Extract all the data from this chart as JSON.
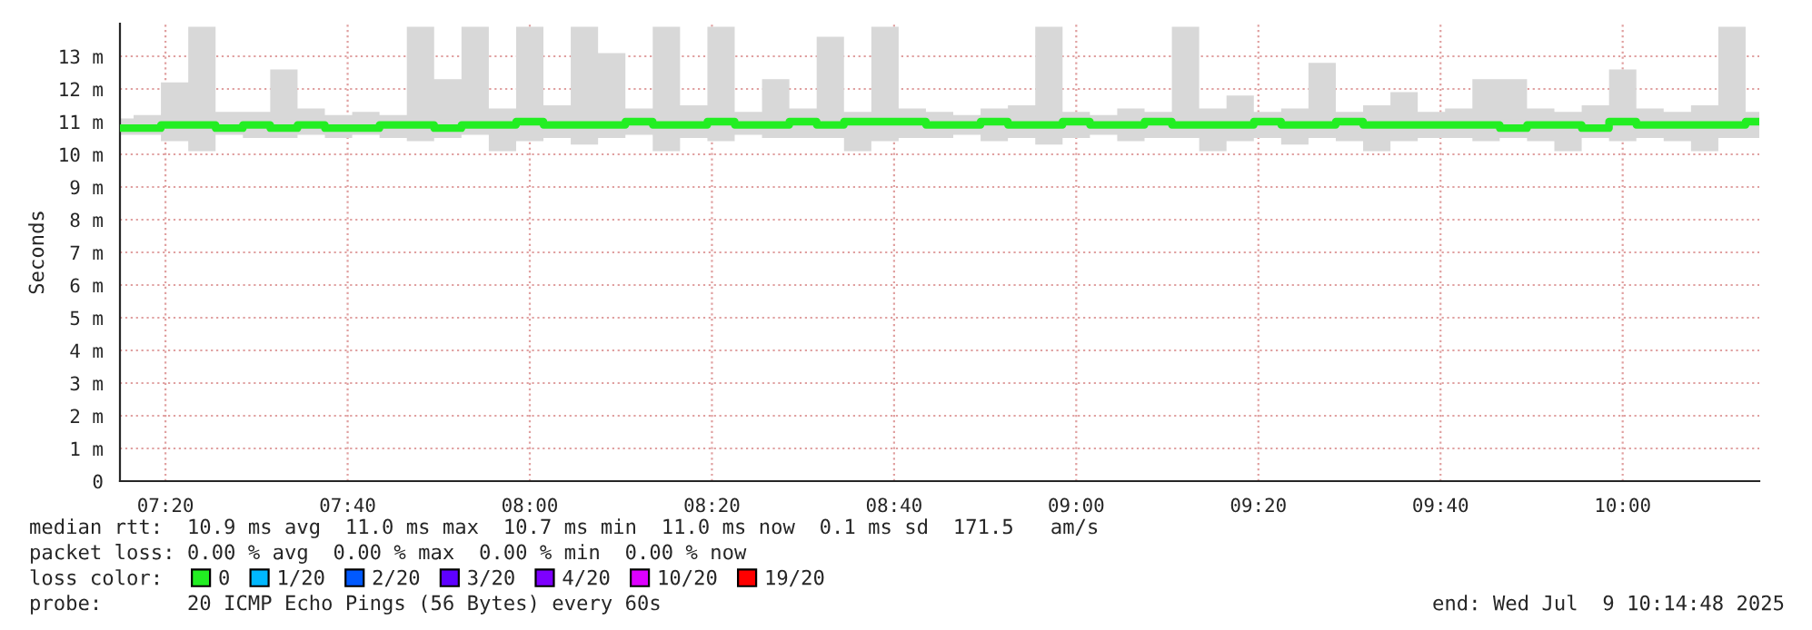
{
  "chart_data": {
    "type": "step",
    "ylabel": "Seconds",
    "x": [
      "2025-07-09T07:15",
      "2025-07-09T07:18",
      "2025-07-09T07:21",
      "2025-07-09T07:24",
      "2025-07-09T07:27",
      "2025-07-09T07:30",
      "2025-07-09T07:33",
      "2025-07-09T07:36",
      "2025-07-09T07:39",
      "2025-07-09T07:42",
      "2025-07-09T07:45",
      "2025-07-09T07:48",
      "2025-07-09T07:51",
      "2025-07-09T07:54",
      "2025-07-09T07:57",
      "2025-07-09T08:00",
      "2025-07-09T08:03",
      "2025-07-09T08:06",
      "2025-07-09T08:09",
      "2025-07-09T08:12",
      "2025-07-09T08:15",
      "2025-07-09T08:18",
      "2025-07-09T08:21",
      "2025-07-09T08:24",
      "2025-07-09T08:27",
      "2025-07-09T08:30",
      "2025-07-09T08:33",
      "2025-07-09T08:36",
      "2025-07-09T08:39",
      "2025-07-09T08:42",
      "2025-07-09T08:45",
      "2025-07-09T08:48",
      "2025-07-09T08:51",
      "2025-07-09T08:54",
      "2025-07-09T08:57",
      "2025-07-09T09:00",
      "2025-07-09T09:03",
      "2025-07-09T09:06",
      "2025-07-09T09:09",
      "2025-07-09T09:12",
      "2025-07-09T09:15",
      "2025-07-09T09:18",
      "2025-07-09T09:21",
      "2025-07-09T09:24",
      "2025-07-09T09:27",
      "2025-07-09T09:30",
      "2025-07-09T09:33",
      "2025-07-09T09:36",
      "2025-07-09T09:39",
      "2025-07-09T09:42",
      "2025-07-09T09:45",
      "2025-07-09T09:48",
      "2025-07-09T09:51",
      "2025-07-09T09:54",
      "2025-07-09T09:57",
      "2025-07-09T10:00",
      "2025-07-09T10:03",
      "2025-07-09T10:06",
      "2025-07-09T10:09",
      "2025-07-09T10:12",
      "2025-07-09T10:15"
    ],
    "series": [
      {
        "name": "0",
        "color": "#22ee22",
        "values": [
          10.8,
          10.8,
          10.9,
          10.9,
          10.8,
          10.9,
          10.8,
          10.9,
          10.8,
          10.8,
          10.9,
          10.9,
          10.8,
          10.9,
          10.9,
          11.0,
          10.9,
          10.9,
          10.9,
          11.0,
          10.9,
          10.9,
          11.0,
          10.9,
          10.9,
          11.0,
          10.9,
          11.0,
          11.0,
          11.0,
          10.9,
          10.9,
          11.0,
          10.9,
          10.9,
          11.0,
          10.9,
          10.9,
          11.0,
          10.9,
          10.9,
          10.9,
          11.0,
          10.9,
          10.9,
          11.0,
          10.9,
          10.9,
          10.9,
          10.9,
          10.9,
          10.8,
          10.9,
          10.9,
          10.8,
          11.0,
          10.9,
          10.9,
          10.9,
          10.9,
          11.0
        ],
        "lower": [
          10.6,
          10.6,
          10.4,
          10.1,
          10.6,
          10.5,
          10.5,
          10.6,
          10.5,
          10.6,
          10.5,
          10.4,
          10.5,
          10.6,
          10.1,
          10.4,
          10.5,
          10.3,
          10.5,
          10.6,
          10.1,
          10.5,
          10.4,
          10.6,
          10.5,
          10.5,
          10.5,
          10.1,
          10.4,
          10.5,
          10.5,
          10.6,
          10.4,
          10.5,
          10.3,
          10.5,
          10.6,
          10.4,
          10.5,
          10.5,
          10.1,
          10.4,
          10.5,
          10.3,
          10.5,
          10.4,
          10.1,
          10.4,
          10.5,
          10.5,
          10.4,
          10.5,
          10.4,
          10.1,
          10.5,
          10.4,
          10.5,
          10.4,
          10.1,
          10.5,
          10.5
        ],
        "upper": [
          11.1,
          11.2,
          12.2,
          13.9,
          11.3,
          11.3,
          12.6,
          11.4,
          11.2,
          11.3,
          11.2,
          13.9,
          12.3,
          13.9,
          11.4,
          13.9,
          11.5,
          13.9,
          13.1,
          11.4,
          13.9,
          11.5,
          13.9,
          11.3,
          12.3,
          11.4,
          13.6,
          11.3,
          13.9,
          11.4,
          11.3,
          11.2,
          11.4,
          11.5,
          13.9,
          11.3,
          11.2,
          11.4,
          11.3,
          13.9,
          11.4,
          11.8,
          11.3,
          11.4,
          12.8,
          11.3,
          11.5,
          11.9,
          11.3,
          11.4,
          12.3,
          12.3,
          11.4,
          11.3,
          11.5,
          12.6,
          11.4,
          11.3,
          11.5,
          13.9,
          11.3
        ]
      },
      {
        "name": "1/20",
        "color": "#00b8ff",
        "values": [
          null,
          null,
          null,
          null,
          null,
          null,
          null,
          null,
          null,
          null,
          null,
          null,
          null,
          null,
          null,
          null,
          null,
          null,
          null,
          null,
          null,
          null,
          null,
          null,
          null,
          null,
          null,
          null,
          null,
          null,
          null,
          null,
          null,
          null,
          null,
          null,
          null,
          null,
          null,
          null,
          null,
          null,
          null,
          null,
          null,
          null,
          null,
          null,
          null,
          null,
          null,
          null,
          null,
          null,
          null,
          null,
          null,
          null,
          null,
          null,
          null
        ]
      },
      {
        "name": "2/20",
        "color": "#0059ff",
        "values": [
          null,
          null,
          null,
          null,
          null,
          null,
          null,
          null,
          null,
          null,
          null,
          null,
          null,
          null,
          null,
          null,
          null,
          null,
          null,
          null,
          null,
          null,
          null,
          null,
          null,
          null,
          null,
          null,
          null,
          null,
          null,
          null,
          null,
          null,
          null,
          null,
          null,
          null,
          null,
          null,
          null,
          null,
          null,
          null,
          null,
          null,
          null,
          null,
          null,
          null,
          null,
          null,
          null,
          null,
          null,
          null,
          null,
          null,
          null,
          null,
          null
        ]
      },
      {
        "name": "3/20",
        "color": "#5e00ff",
        "values": [
          null,
          null,
          null,
          null,
          null,
          null,
          null,
          null,
          null,
          null,
          null,
          null,
          null,
          null,
          null,
          null,
          null,
          null,
          null,
          null,
          null,
          null,
          null,
          null,
          null,
          null,
          null,
          null,
          null,
          null,
          null,
          null,
          null,
          null,
          null,
          null,
          null,
          null,
          null,
          null,
          null,
          null,
          null,
          null,
          null,
          null,
          null,
          null,
          null,
          null,
          null,
          null,
          null,
          null,
          null,
          null,
          null,
          null,
          null,
          null,
          null
        ]
      },
      {
        "name": "4/20",
        "color": "#7e00ff",
        "values": [
          null,
          null,
          null,
          null,
          null,
          null,
          null,
          null,
          null,
          null,
          null,
          null,
          null,
          null,
          null,
          null,
          null,
          null,
          null,
          null,
          null,
          null,
          null,
          null,
          null,
          null,
          null,
          null,
          null,
          null,
          null,
          null,
          null,
          null,
          null,
          null,
          null,
          null,
          null,
          null,
          null,
          null,
          null,
          null,
          null,
          null,
          null,
          null,
          null,
          null,
          null,
          null,
          null,
          null,
          null,
          null,
          null,
          null,
          null,
          null,
          null
        ]
      },
      {
        "name": "10/20",
        "color": "#dd00ff",
        "values": [
          null,
          null,
          null,
          null,
          null,
          null,
          null,
          null,
          null,
          null,
          null,
          null,
          null,
          null,
          null,
          null,
          null,
          null,
          null,
          null,
          null,
          null,
          null,
          null,
          null,
          null,
          null,
          null,
          null,
          null,
          null,
          null,
          null,
          null,
          null,
          null,
          null,
          null,
          null,
          null,
          null,
          null,
          null,
          null,
          null,
          null,
          null,
          null,
          null,
          null,
          null,
          null,
          null,
          null,
          null,
          null,
          null,
          null,
          null,
          null,
          null
        ]
      },
      {
        "name": "19/20",
        "color": "#ff0000",
        "values": [
          null,
          null,
          null,
          null,
          null,
          null,
          null,
          null,
          null,
          null,
          null,
          null,
          null,
          null,
          null,
          null,
          null,
          null,
          null,
          null,
          null,
          null,
          null,
          null,
          null,
          null,
          null,
          null,
          null,
          null,
          null,
          null,
          null,
          null,
          null,
          null,
          null,
          null,
          null,
          null,
          null,
          null,
          null,
          null,
          null,
          null,
          null,
          null,
          null,
          null,
          null,
          null,
          null,
          null,
          null,
          null,
          null,
          null,
          null,
          null,
          null
        ]
      }
    ],
    "legend": "bottom",
    "legend_title": "loss color:",
    "xlim": [
      "2025-07-09T07:15",
      "2025-07-09T10:15"
    ],
    "xticks": [
      {
        "value": "2025-07-09T07:20",
        "label": "07:20"
      },
      {
        "value": "2025-07-09T07:40",
        "label": "07:40"
      },
      {
        "value": "2025-07-09T08:00",
        "label": "08:00"
      },
      {
        "value": "2025-07-09T08:20",
        "label": "08:20"
      },
      {
        "value": "2025-07-09T08:40",
        "label": "08:40"
      },
      {
        "value": "2025-07-09T09:00",
        "label": "09:00"
      },
      {
        "value": "2025-07-09T09:20",
        "label": "09:20"
      },
      {
        "value": "2025-07-09T09:40",
        "label": "09:40"
      },
      {
        "value": "2025-07-09T10:00",
        "label": "10:00"
      }
    ],
    "ylim": [
      0,
      14
    ],
    "yticks": [
      0,
      {
        "value": 1,
        "label": "1 m"
      },
      {
        "value": 2,
        "label": "2 m"
      },
      {
        "value": 3,
        "label": "3 m"
      },
      {
        "value": 4,
        "label": "4 m"
      },
      {
        "value": 5,
        "label": "5 m"
      },
      {
        "value": 6,
        "label": "6 m"
      },
      {
        "value": 7,
        "label": "7 m"
      },
      {
        "value": 8,
        "label": "8 m"
      },
      {
        "value": 9,
        "label": "9 m"
      },
      {
        "value": 10,
        "label": "10 m"
      },
      {
        "value": 11,
        "label": "11 m"
      },
      {
        "value": 12,
        "label": "12 m"
      },
      {
        "value": 13,
        "label": "13 m"
      }
    ],
    "grid": true,
    "line_style": "solid",
    "annotations": [
      "median rtt:  10.9 ms avg  11.0 ms max  10.7 ms min  11.0 ms now  0.1 ms sd  171.5   am/s",
      "packet loss: 0.00 % avg  0.00 % max  0.00 % min  0.00 % now",
      "probe:       20 ICMP Echo Pings (56 Bytes) every 60s",
      "end: Wed Jul  9 10:14:48 2025"
    ]
  }
}
